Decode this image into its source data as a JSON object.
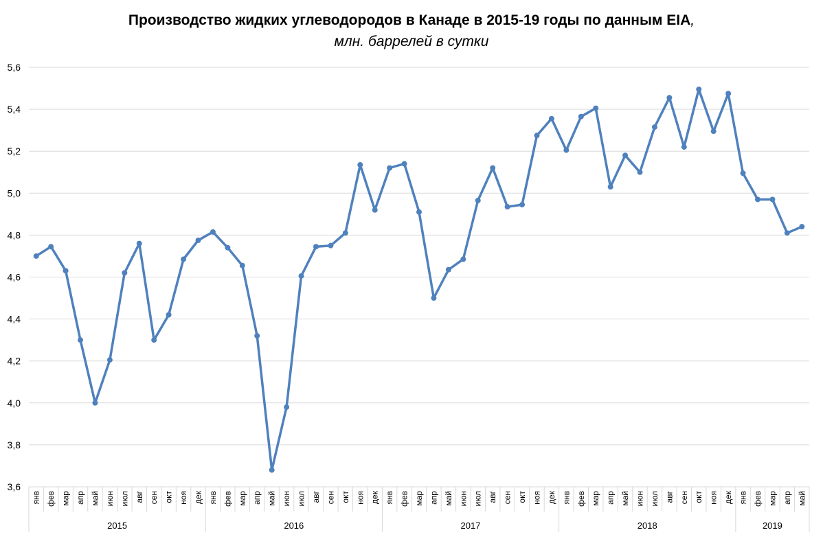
{
  "chart_data": {
    "type": "line",
    "title": "Производство жидких углеводородов в Канаде в 2015-19 годы по данным EIA",
    "title_suffix": ",",
    "subtitle": "млн. баррелей в сутки",
    "xlabel": "",
    "ylabel": "",
    "ylim": [
      3.6,
      5.6
    ],
    "y_ticks": [
      "5,6",
      "5,4",
      "5,2",
      "5,0",
      "4,8",
      "4,6",
      "4,4",
      "4,2",
      "4,0",
      "3,8",
      "3,6"
    ],
    "y_tick_values": [
      5.6,
      5.4,
      5.2,
      5.0,
      4.8,
      4.6,
      4.4,
      4.2,
      4.0,
      3.8,
      3.6
    ],
    "grid": true,
    "legend": "none",
    "series_color": "#4f81bd",
    "years": [
      {
        "label": "2015",
        "months": 12
      },
      {
        "label": "2016",
        "months": 12
      },
      {
        "label": "2017",
        "months": 12
      },
      {
        "label": "2018",
        "months": 12
      },
      {
        "label": "2019",
        "months": 5
      }
    ],
    "categories": [
      "янв",
      "фев",
      "мар",
      "апр",
      "май",
      "июн",
      "июл",
      "авг",
      "сен",
      "окт",
      "ноя",
      "дек",
      "янв",
      "фев",
      "мар",
      "апр",
      "май",
      "июн",
      "июл",
      "авг",
      "сен",
      "окт",
      "ноя",
      "дек",
      "янв",
      "фев",
      "мар",
      "апр",
      "май",
      "июн",
      "июл",
      "авг",
      "сен",
      "окт",
      "ноя",
      "дек",
      "янв",
      "фев",
      "мар",
      "апр",
      "май",
      "июн",
      "июл",
      "авг",
      "сен",
      "окт",
      "ноя",
      "дек",
      "янв",
      "фев",
      "мар",
      "апр",
      "май"
    ],
    "values": [
      4.7,
      4.745,
      4.63,
      4.3,
      4.0,
      4.205,
      4.62,
      4.76,
      4.3,
      4.42,
      4.685,
      4.775,
      4.815,
      4.74,
      4.655,
      4.32,
      3.68,
      3.98,
      4.605,
      4.745,
      4.75,
      4.81,
      5.135,
      4.92,
      5.12,
      5.14,
      4.91,
      4.5,
      4.635,
      4.685,
      4.965,
      5.12,
      4.935,
      4.945,
      5.275,
      5.355,
      5.205,
      5.365,
      5.405,
      5.03,
      5.18,
      5.1,
      5.315,
      5.455,
      5.22,
      5.495,
      5.295,
      5.475,
      5.095,
      4.97,
      4.97,
      4.81,
      4.84
    ]
  }
}
